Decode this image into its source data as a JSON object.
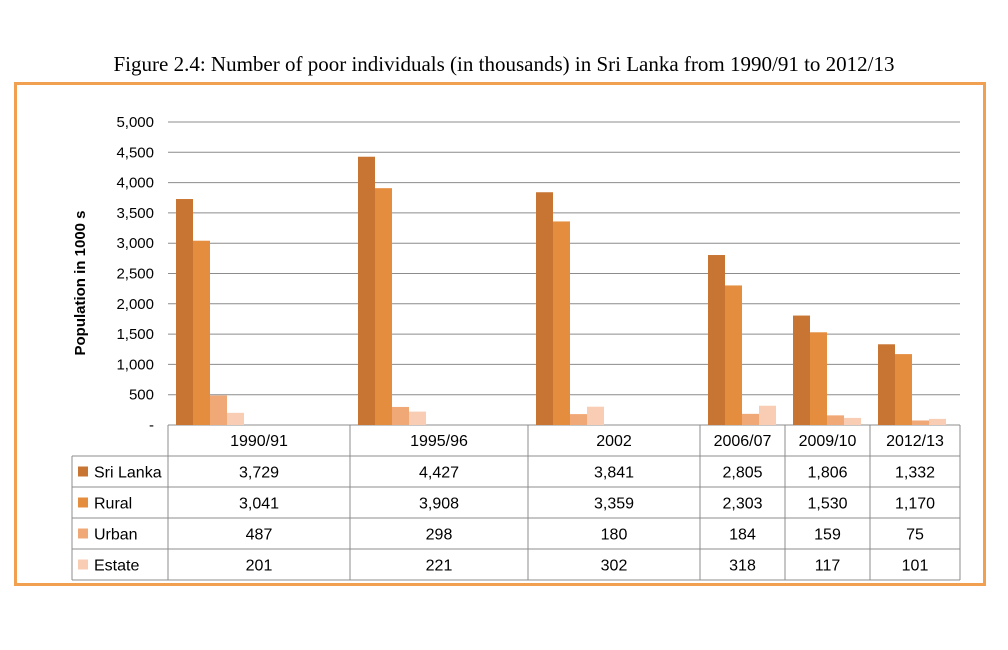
{
  "chart_data": {
    "type": "bar",
    "title": "Figure 2.4: Number of poor individuals (in thousands)  in Sri Lanka from 1990/91 to 2012/13",
    "ylabel": "Population in 1000 s",
    "ylim": [
      0,
      5000
    ],
    "yticks": [
      "-",
      "500",
      "1,000",
      "1,500",
      "2,000",
      "2,500",
      "3,000",
      "3,500",
      "4,000",
      "4,500",
      "5,000"
    ],
    "grid": true,
    "data_table": true,
    "categories": [
      "1990/91",
      "1995/96",
      "2002",
      "2006/07",
      "2009/10",
      "2012/13"
    ],
    "series": [
      {
        "name": "Sri Lanka",
        "color": "#c87533",
        "values": [
          3729,
          4427,
          3841,
          2805,
          1806,
          1332
        ],
        "labels": [
          "3,729",
          "4,427",
          "3,841",
          "2,805",
          "1,806",
          "1,332"
        ]
      },
      {
        "name": "Rural",
        "color": "#e58d3e",
        "values": [
          3041,
          3908,
          3359,
          2303,
          1530,
          1170
        ],
        "labels": [
          "3,041",
          "3,908",
          "3,359",
          "2,303",
          "1,530",
          "1,170"
        ]
      },
      {
        "name": "Urban",
        "color": "#f1a877",
        "values": [
          487,
          298,
          180,
          184,
          159,
          75
        ],
        "labels": [
          "487",
          "298",
          "180",
          "184",
          "159",
          "75"
        ]
      },
      {
        "name": "Estate",
        "color": "#f8cdb3",
        "values": [
          201,
          221,
          302,
          318,
          117,
          101
        ],
        "labels": [
          "201",
          "221",
          "302",
          "318",
          "117",
          "101"
        ]
      }
    ]
  }
}
